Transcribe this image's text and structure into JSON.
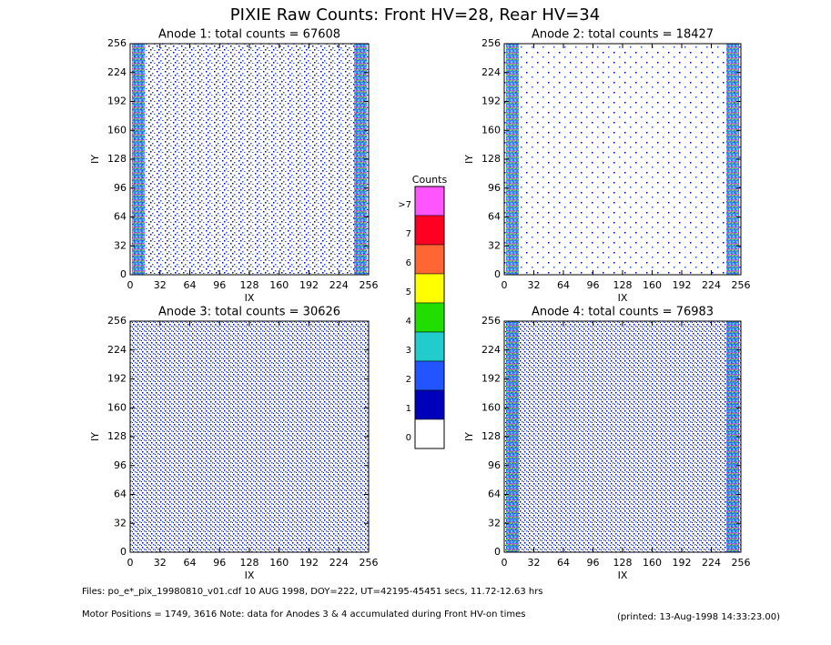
{
  "title": "PIXIE Raw Counts:  Front HV=28, Rear HV=34",
  "chart_data": [
    {
      "type": "heatmap",
      "title": "Anode 1: total counts = 67608",
      "xlabel": "IX",
      "ylabel": "IY",
      "xlim": [
        0,
        256
      ],
      "ylim": [
        0,
        256
      ],
      "xticks": [
        0,
        32,
        64,
        96,
        128,
        160,
        192,
        224,
        256
      ],
      "yticks": [
        0,
        32,
        64,
        96,
        128,
        160,
        192,
        224,
        256
      ]
    },
    {
      "type": "heatmap",
      "title": "Anode 2: total counts = 18427",
      "xlabel": "IX",
      "ylabel": "IY",
      "xlim": [
        0,
        256
      ],
      "ylim": [
        0,
        256
      ],
      "xticks": [
        0,
        32,
        64,
        96,
        128,
        160,
        192,
        224,
        256
      ],
      "yticks": [
        0,
        32,
        64,
        96,
        128,
        160,
        192,
        224,
        256
      ]
    },
    {
      "type": "heatmap",
      "title": "Anode 3: total counts = 30626",
      "xlabel": "IX",
      "ylabel": "IY",
      "xlim": [
        0,
        256
      ],
      "ylim": [
        0,
        256
      ],
      "xticks": [
        0,
        32,
        64,
        96,
        128,
        160,
        192,
        224,
        256
      ],
      "yticks": [
        0,
        32,
        64,
        96,
        128,
        160,
        192,
        224,
        256
      ]
    },
    {
      "type": "heatmap",
      "title": "Anode 4: total counts = 76983",
      "xlabel": "IX",
      "ylabel": "IY",
      "xlim": [
        0,
        256
      ],
      "ylim": [
        0,
        256
      ],
      "xticks": [
        0,
        32,
        64,
        96,
        128,
        160,
        192,
        224,
        256
      ],
      "yticks": [
        0,
        32,
        64,
        96,
        128,
        160,
        192,
        224,
        256
      ]
    }
  ],
  "colorbar": {
    "title": "Counts",
    "levels": [
      {
        "label": ">7",
        "color": "#ff55ff"
      },
      {
        "label": "7",
        "color": "#ff0022"
      },
      {
        "label": "6",
        "color": "#ff6633"
      },
      {
        "label": "5",
        "color": "#ffff00"
      },
      {
        "label": "4",
        "color": "#22dd00"
      },
      {
        "label": "3",
        "color": "#22cccc"
      },
      {
        "label": "2",
        "color": "#2255ff"
      },
      {
        "label": "1",
        "color": "#0000bb"
      },
      {
        "label": "0",
        "color": "#ffffff"
      }
    ]
  },
  "footer": {
    "files": "Files: po_e*_pix_19980810_v01.cdf    10 AUG 1998, DOY=222, UT=42195-45451 secs, 11.72-12.63 hrs",
    "motor": "Motor Positions = 1749, 3616   Note: data for Anodes 3 & 4 accumulated during Front HV-on times",
    "printed": "(printed: 13-Aug-1998 14:33:23.00)"
  }
}
